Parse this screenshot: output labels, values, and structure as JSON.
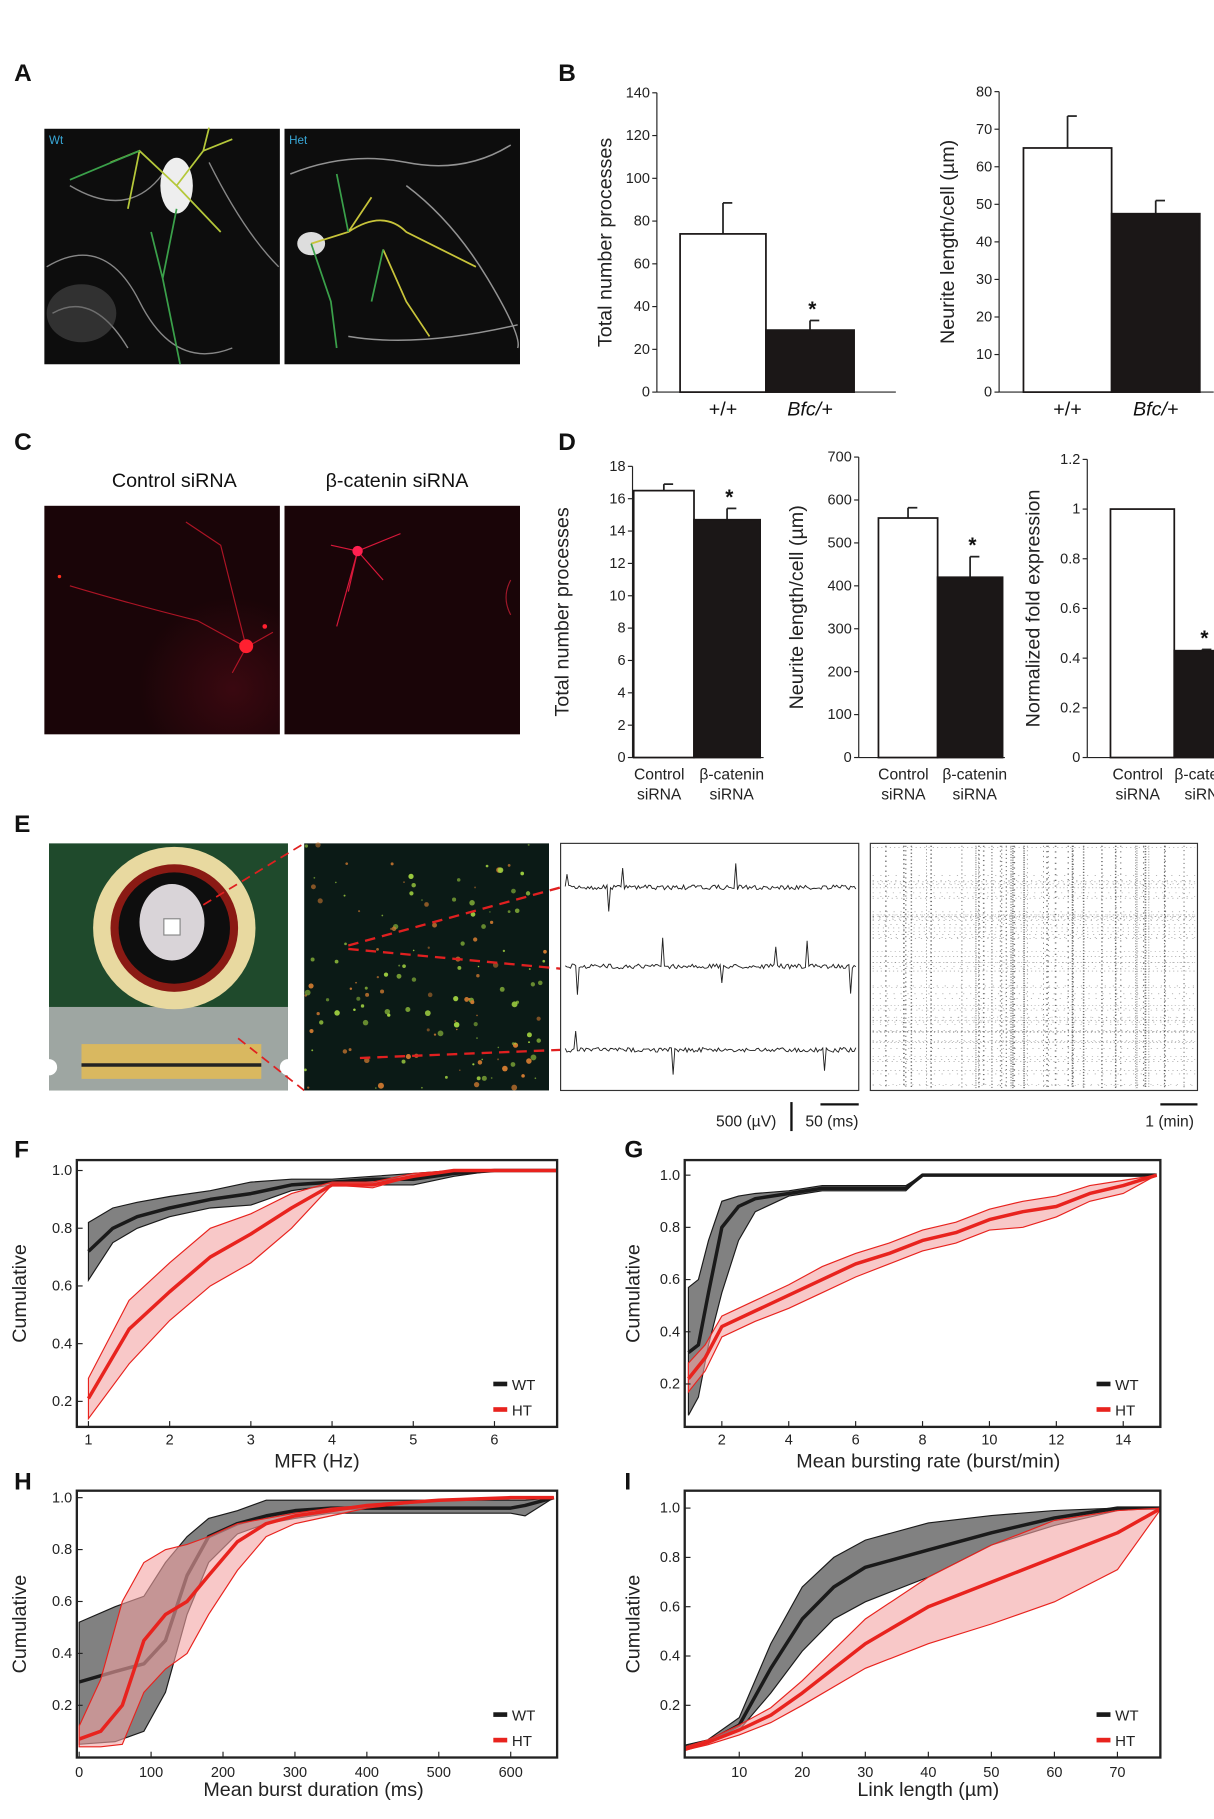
{
  "panels": {
    "A": "A",
    "B": "B",
    "C": "C",
    "D": "D",
    "E": "E",
    "F": "F",
    "G": "G",
    "H": "H",
    "I": "I"
  },
  "panel_a": {
    "image_labels": [
      "Wt",
      "Het"
    ]
  },
  "panel_c": {
    "image_titles": [
      "Control siRNA",
      "β-catenin siRNA"
    ]
  },
  "panel_e": {
    "scale_voltage": "500 (µV)",
    "scale_time_ms": "50 (ms)",
    "scale_time_min": "1 (min)"
  },
  "colors": {
    "wt": "#1a1a1a",
    "ht": "#e8231e",
    "wt_band": "#6b6b6b",
    "ht_band": "#f3a3a3"
  },
  "chart_data": [
    {
      "id": "B1",
      "type": "bar",
      "ylabel": "Total number processes",
      "categories": [
        "+/+",
        "Bfc/+"
      ],
      "values": [
        74,
        29
      ],
      "errors": [
        88.5,
        33.5
      ],
      "significant": [
        false,
        true
      ],
      "star": "*",
      "ylim": [
        0,
        140
      ],
      "yticks": [
        "0",
        "20",
        "40",
        "60",
        "80",
        "100",
        "120",
        "140"
      ]
    },
    {
      "id": "B2",
      "type": "bar",
      "ylabel": "Neurite length/cell (µm)",
      "categories": [
        "+/+",
        "Bfc/+"
      ],
      "values": [
        65,
        47.5
      ],
      "errors": [
        73.5,
        51
      ],
      "significant": [
        false,
        false
      ],
      "star": "*",
      "ylim": [
        0,
        80
      ],
      "yticks": [
        "0",
        "10",
        "20",
        "30",
        "40",
        "50",
        "60",
        "70",
        "80"
      ]
    },
    {
      "id": "D1",
      "type": "bar",
      "ylabel": "Total number processes",
      "categories": [
        [
          "Control",
          "siRNA"
        ],
        [
          "β-catenin",
          "siRNA"
        ]
      ],
      "values": [
        16.5,
        14.7
      ],
      "errors": [
        16.9,
        15.4
      ],
      "significant": [
        false,
        true
      ],
      "star": "*",
      "ylim": [
        0,
        18
      ],
      "yticks": [
        "0",
        "2",
        "4",
        "6",
        "8",
        "10",
        "12",
        "14",
        "16",
        "18"
      ]
    },
    {
      "id": "D2",
      "type": "bar",
      "ylabel": "Neurite length/cell (µm)",
      "categories": [
        [
          "Control",
          "siRNA"
        ],
        [
          "β-catenin",
          "siRNA"
        ]
      ],
      "values": [
        558,
        420
      ],
      "errors": [
        582,
        468
      ],
      "significant": [
        false,
        true
      ],
      "star": "*",
      "ylim": [
        0,
        700
      ],
      "yticks": [
        "0",
        "100",
        "200",
        "300",
        "400",
        "500",
        "600",
        "700"
      ]
    },
    {
      "id": "D3",
      "type": "bar",
      "ylabel": "Normalized fold expression",
      "categories": [
        [
          "Control",
          "siRNA"
        ],
        [
          "β-catenin",
          "siRNA"
        ]
      ],
      "values": [
        1.0,
        0.43
      ],
      "errors": [
        1.0,
        0.435
      ],
      "significant": [
        false,
        true
      ],
      "star": "*",
      "ylim": [
        0,
        1.2
      ],
      "yticks": [
        "0",
        "0.2",
        "0.4",
        "0.6",
        "0.8",
        "1",
        "1.2"
      ]
    },
    {
      "id": "F",
      "type": "line",
      "xlabel": "MFR (Hz)",
      "ylabel": "Cumulative",
      "xticks": [
        "1",
        "2",
        "3",
        "4",
        "5",
        "6"
      ],
      "yticks": [
        "0.2",
        "0.4",
        "0.6",
        "0.8",
        "1.0"
      ],
      "legend": [
        "WT",
        "HT"
      ],
      "legend_position": "bottom-right",
      "series": [
        {
          "name": "WT",
          "x": [
            1,
            1.3,
            1.6,
            2,
            2.5,
            3,
            3.5,
            4,
            4.5,
            5,
            5.5,
            6,
            6.8
          ],
          "median": [
            0.72,
            0.8,
            0.84,
            0.87,
            0.9,
            0.92,
            0.95,
            0.96,
            0.97,
            0.97,
            0.99,
            1,
            1
          ],
          "lower": [
            0.62,
            0.75,
            0.8,
            0.84,
            0.87,
            0.88,
            0.93,
            0.95,
            0.95,
            0.95,
            0.98,
            1,
            1
          ],
          "upper": [
            0.82,
            0.87,
            0.89,
            0.91,
            0.93,
            0.96,
            0.97,
            0.97,
            0.98,
            0.99,
            1,
            1,
            1
          ]
        },
        {
          "name": "HT",
          "x": [
            1,
            1.5,
            2,
            2.5,
            3,
            3.5,
            4,
            4.5,
            5,
            5.5,
            6,
            6.8
          ],
          "median": [
            0.21,
            0.45,
            0.58,
            0.7,
            0.78,
            0.87,
            0.95,
            0.95,
            0.98,
            1,
            1,
            1
          ],
          "lower": [
            0.14,
            0.33,
            0.48,
            0.6,
            0.68,
            0.8,
            0.95,
            0.94,
            0.98,
            1,
            1,
            1
          ],
          "upper": [
            0.28,
            0.55,
            0.68,
            0.8,
            0.85,
            0.92,
            0.96,
            0.96,
            0.99,
            1,
            1,
            1
          ]
        }
      ]
    },
    {
      "id": "G",
      "type": "line",
      "xlabel": "Mean bursting rate (burst/min)",
      "ylabel": "Cumulative",
      "xticks": [
        "2",
        "4",
        "6",
        "8",
        "10",
        "12",
        "14"
      ],
      "yticks": [
        "0.2",
        "0.4",
        "0.6",
        "0.8",
        "1.0"
      ],
      "legend": [
        "WT",
        "HT"
      ],
      "legend_position": "bottom-right",
      "series": [
        {
          "name": "WT",
          "x": [
            1,
            1.3,
            1.6,
            2,
            2.5,
            3,
            4,
            5,
            6,
            7,
            7.5,
            8,
            10,
            12,
            14,
            15
          ],
          "median": [
            0.32,
            0.35,
            0.55,
            0.8,
            0.88,
            0.91,
            0.93,
            0.95,
            0.95,
            0.95,
            0.95,
            1,
            1,
            1,
            1,
            1
          ],
          "lower": [
            0.08,
            0.15,
            0.35,
            0.55,
            0.75,
            0.86,
            0.92,
            0.94,
            0.94,
            0.94,
            0.94,
            1,
            1,
            1,
            1,
            1
          ],
          "upper": [
            0.57,
            0.6,
            0.75,
            0.9,
            0.92,
            0.93,
            0.94,
            0.96,
            0.96,
            0.96,
            0.96,
            1,
            1,
            1,
            1,
            1
          ]
        },
        {
          "name": "HT",
          "x": [
            1,
            1.5,
            2,
            3,
            4,
            5,
            6,
            7,
            8,
            9,
            10,
            11,
            12,
            13,
            14,
            15
          ],
          "median": [
            0.22,
            0.3,
            0.42,
            0.48,
            0.54,
            0.6,
            0.66,
            0.7,
            0.75,
            0.78,
            0.83,
            0.86,
            0.88,
            0.93,
            0.96,
            1
          ],
          "lower": [
            0.17,
            0.25,
            0.38,
            0.44,
            0.49,
            0.55,
            0.61,
            0.66,
            0.71,
            0.74,
            0.79,
            0.8,
            0.84,
            0.9,
            0.93,
            1
          ],
          "upper": [
            0.28,
            0.35,
            0.46,
            0.52,
            0.58,
            0.65,
            0.7,
            0.74,
            0.79,
            0.82,
            0.87,
            0.9,
            0.92,
            0.96,
            0.98,
            1
          ]
        }
      ]
    },
    {
      "id": "H",
      "type": "line",
      "xlabel": "Mean burst duration (ms)",
      "ylabel": "Cumulative",
      "xticks": [
        "0",
        "100",
        "200",
        "300",
        "400",
        "500",
        "600"
      ],
      "yticks": [
        "0.2",
        "0.4",
        "0.6",
        "0.8",
        "1.0"
      ],
      "legend": [
        "WT",
        "HT"
      ],
      "legend_position": "bottom-right",
      "series": [
        {
          "name": "WT",
          "x": [
            0,
            50,
            90,
            120,
            150,
            180,
            220,
            260,
            300,
            350,
            400,
            500,
            600,
            620,
            660
          ],
          "median": [
            0.29,
            0.33,
            0.36,
            0.45,
            0.7,
            0.85,
            0.9,
            0.93,
            0.95,
            0.96,
            0.96,
            0.96,
            0.96,
            0.97,
            1
          ],
          "lower": [
            0.05,
            0.06,
            0.1,
            0.25,
            0.55,
            0.75,
            0.86,
            0.9,
            0.92,
            0.94,
            0.94,
            0.94,
            0.94,
            0.93,
            1
          ],
          "upper": [
            0.52,
            0.58,
            0.62,
            0.75,
            0.85,
            0.92,
            0.95,
            0.99,
            0.99,
            0.99,
            0.99,
            0.99,
            0.99,
            0.99,
            1
          ]
        },
        {
          "name": "HT",
          "x": [
            0,
            30,
            60,
            90,
            120,
            150,
            180,
            220,
            260,
            300,
            350,
            400,
            500,
            600,
            660
          ],
          "median": [
            0.07,
            0.1,
            0.2,
            0.45,
            0.55,
            0.6,
            0.7,
            0.83,
            0.9,
            0.93,
            0.95,
            0.97,
            0.99,
            1,
            1
          ],
          "lower": [
            0.04,
            0.04,
            0.05,
            0.25,
            0.34,
            0.4,
            0.55,
            0.72,
            0.85,
            0.9,
            0.93,
            0.96,
            0.99,
            1,
            1
          ],
          "upper": [
            0.12,
            0.3,
            0.6,
            0.75,
            0.8,
            0.82,
            0.85,
            0.9,
            0.92,
            0.94,
            0.96,
            0.97,
            0.99,
            1,
            1
          ]
        }
      ]
    },
    {
      "id": "I",
      "type": "line",
      "xlabel": "Link length (µm)",
      "ylabel": "Cumulative",
      "xticks": [
        "10",
        "20",
        "30",
        "40",
        "50",
        "60",
        "70"
      ],
      "yticks": [
        "0.2",
        "0.4",
        "0.6",
        "0.8",
        "1.0"
      ],
      "legend": [
        "WT",
        "HT"
      ],
      "legend_position": "bottom-right",
      "series": [
        {
          "name": "WT",
          "x": [
            0,
            5,
            10,
            15,
            20,
            25,
            30,
            40,
            50,
            60,
            70,
            77
          ],
          "median": [
            0.02,
            0.05,
            0.12,
            0.35,
            0.55,
            0.68,
            0.76,
            0.83,
            0.9,
            0.96,
            1,
            1
          ],
          "lower": [
            0.02,
            0.05,
            0.1,
            0.25,
            0.42,
            0.55,
            0.62,
            0.72,
            0.85,
            0.93,
            0.99,
            1
          ],
          "upper": [
            0.03,
            0.06,
            0.15,
            0.45,
            0.68,
            0.8,
            0.87,
            0.94,
            0.97,
            0.99,
            1,
            1
          ]
        },
        {
          "name": "HT",
          "x": [
            0,
            5,
            10,
            15,
            20,
            30,
            40,
            50,
            60,
            70,
            77
          ],
          "median": [
            0.01,
            0.05,
            0.1,
            0.16,
            0.25,
            0.45,
            0.6,
            0.7,
            0.8,
            0.9,
            1
          ],
          "lower": [
            0.01,
            0.04,
            0.08,
            0.13,
            0.2,
            0.35,
            0.45,
            0.53,
            0.62,
            0.75,
            1
          ],
          "upper": [
            0.02,
            0.06,
            0.12,
            0.19,
            0.3,
            0.55,
            0.72,
            0.85,
            0.95,
            0.99,
            1
          ]
        }
      ]
    }
  ]
}
